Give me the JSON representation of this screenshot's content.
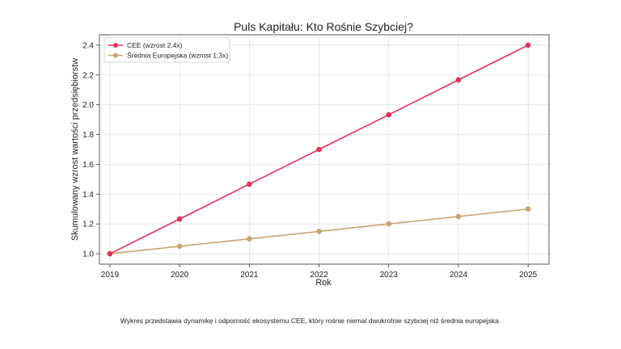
{
  "chart_data": {
    "type": "line",
    "title": "Puls Kapitału: Kto Rośnie Szybciej?",
    "xlabel": "Rok",
    "ylabel": "Skumulowany wzrost wartości przedsiębiorstw",
    "x": [
      2019,
      2020,
      2021,
      2022,
      2023,
      2024,
      2025
    ],
    "xticks": [
      "2019",
      "2020",
      "2021",
      "2022",
      "2023",
      "2024",
      "2025"
    ],
    "yticks": [
      "1.0",
      "1.2",
      "1.4",
      "1.6",
      "1.8",
      "2.0",
      "2.2",
      "2.4"
    ],
    "xlim": [
      2018.85,
      2025.3
    ],
    "ylim": [
      0.93,
      2.47
    ],
    "grid": true,
    "legend_position": "top-left",
    "series": [
      {
        "name": "CEE (wzrost 2,4x)",
        "color": "#e8305c",
        "marker": "circle",
        "values": [
          1.0,
          1.233,
          1.467,
          1.7,
          1.933,
          2.167,
          2.4
        ]
      },
      {
        "name": "Średnia Europejska (wzrost 1,3x)",
        "color": "#c6a572",
        "marker": "circle",
        "values": [
          1.0,
          1.05,
          1.1,
          1.15,
          1.2,
          1.25,
          1.3
        ]
      }
    ]
  },
  "caption": "Wykres przedstawia dynamikę i odporność ekosystemu CEE, który rośnie niemal dwukrotnie szybciej niż średnia europejska."
}
